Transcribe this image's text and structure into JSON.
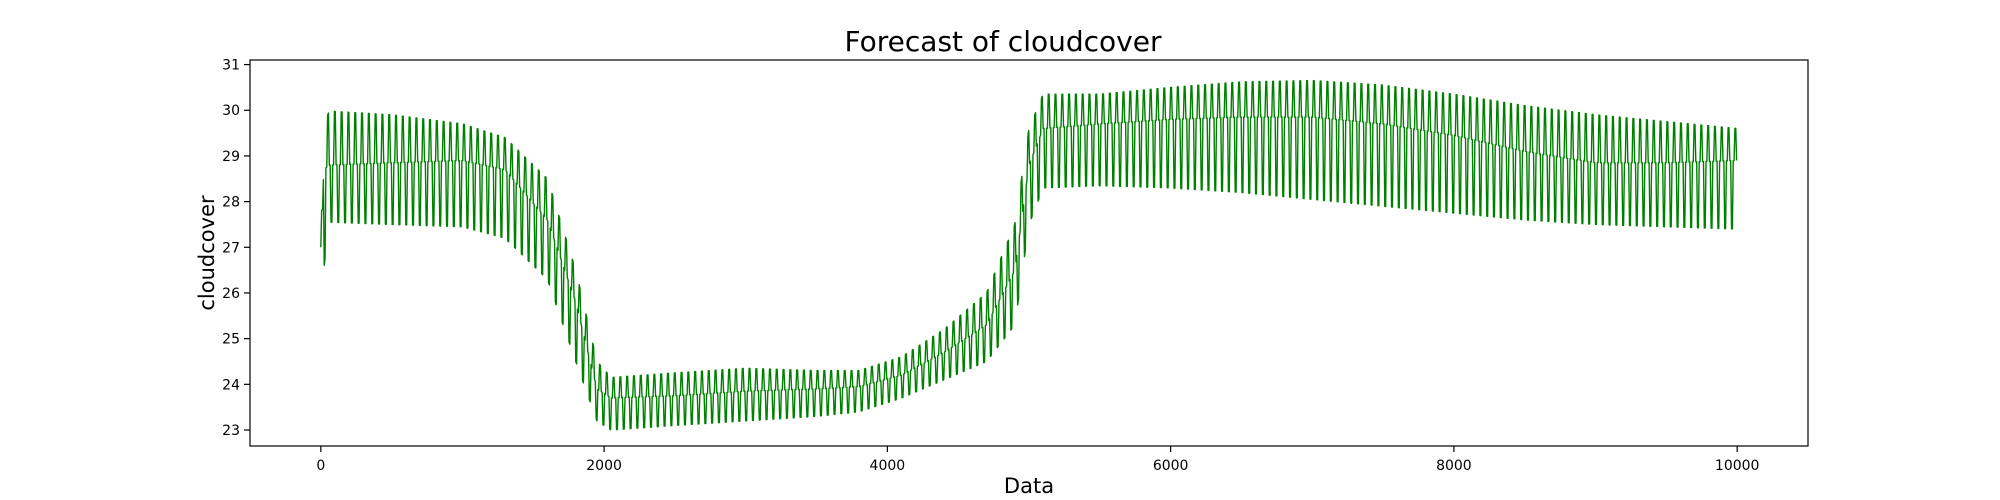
{
  "chart_data": {
    "type": "line",
    "title": "Forecast of cloudcover",
    "xlabel": "Data",
    "ylabel": "cloudcover",
    "xlim": [
      -500,
      10500
    ],
    "ylim": [
      22.65,
      31.1
    ],
    "xticks": [
      0,
      2000,
      4000,
      6000,
      8000,
      10000
    ],
    "xtick_labels": [
      "0",
      "2000",
      "4000",
      "6000",
      "8000",
      "10000"
    ],
    "yticks": [
      23,
      24,
      25,
      26,
      27,
      28,
      29,
      30,
      31
    ],
    "ytick_labels": [
      "23",
      "24",
      "25",
      "26",
      "27",
      "28",
      "29",
      "30",
      "31"
    ],
    "grid": false,
    "legend": "none",
    "series": [
      {
        "color": "#008000",
        "x_range": [
          0,
          10000
        ],
        "description_points": {
          "x": [
            0,
            20,
            60,
            500,
            1000,
            1300,
            1600,
            1800,
            1950,
            2050,
            2500,
            3000,
            3500,
            3800,
            4100,
            4400,
            4700,
            4900,
            5000,
            5100,
            5500,
            6000,
            6500,
            7000,
            7500,
            8000,
            8500,
            9000,
            9500,
            10000
          ],
          "upper": [
            27.0,
            29.7,
            29.98,
            29.9,
            29.7,
            29.4,
            28.5,
            26.5,
            24.5,
            24.15,
            24.25,
            24.35,
            24.3,
            24.3,
            24.6,
            25.2,
            26.0,
            27.5,
            29.6,
            30.35,
            30.35,
            30.5,
            30.62,
            30.65,
            30.55,
            30.35,
            30.1,
            29.9,
            29.75,
            29.6
          ],
          "lower": [
            25.95,
            26.5,
            27.55,
            27.5,
            27.45,
            27.2,
            26.3,
            24.5,
            23.2,
            23.0,
            23.1,
            23.2,
            23.3,
            23.4,
            23.7,
            24.1,
            24.5,
            25.3,
            27.5,
            28.3,
            28.35,
            28.3,
            28.2,
            28.05,
            27.9,
            27.75,
            27.6,
            27.5,
            27.45,
            27.4
          ],
          "mid_upper": [
            26.5,
            28.7,
            28.8,
            28.85,
            28.9,
            28.7,
            27.6,
            25.8,
            23.9,
            23.7,
            23.75,
            23.85,
            23.9,
            23.95,
            24.2,
            24.7,
            25.3,
            26.5,
            28.8,
            29.6,
            29.7,
            29.8,
            29.85,
            29.85,
            29.7,
            29.45,
            29.1,
            28.85,
            28.85,
            28.9
          ]
        }
      }
    ]
  }
}
